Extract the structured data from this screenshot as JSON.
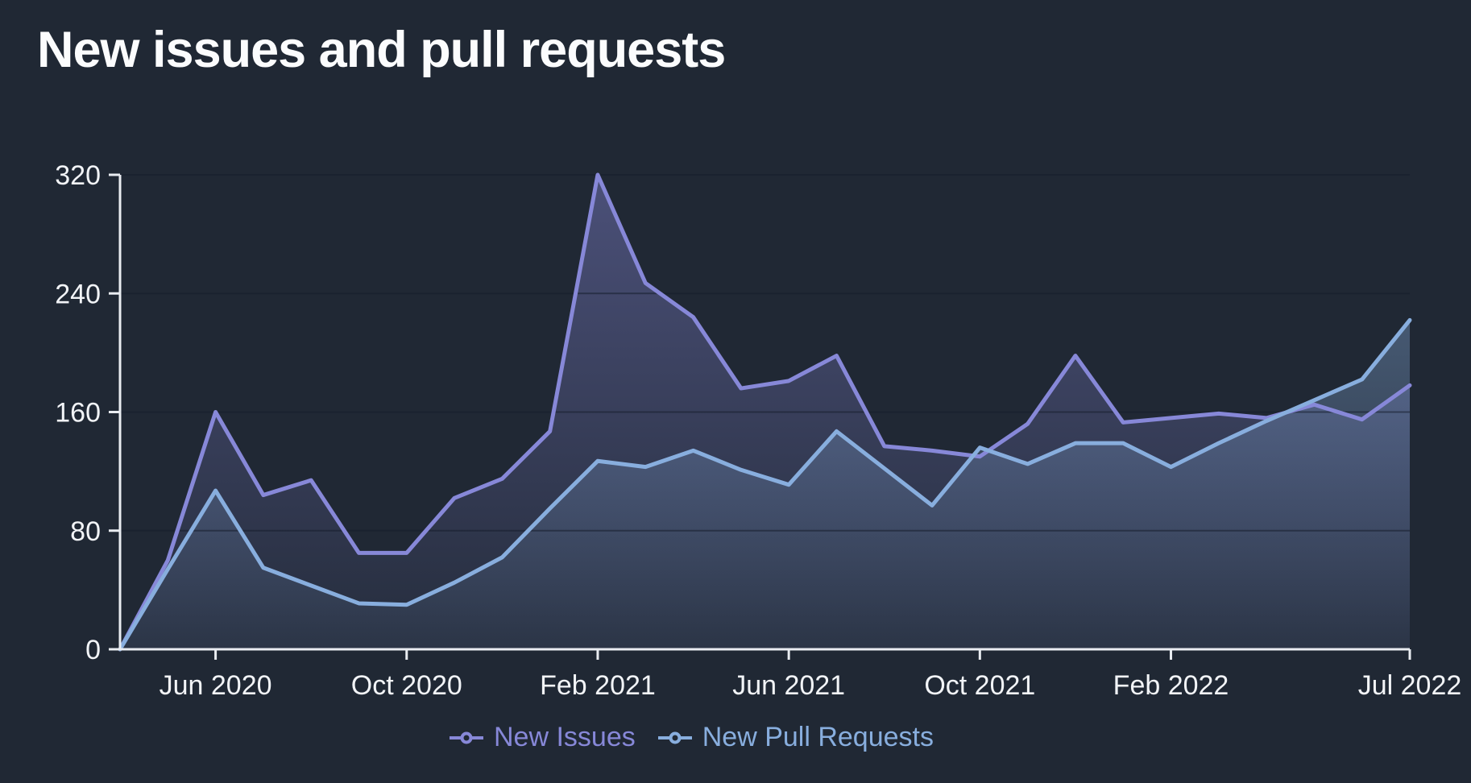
{
  "chart_data": {
    "type": "area",
    "title": "New issues and pull requests",
    "x": [
      "Apr 2020",
      "May 2020",
      "Jun 2020",
      "Jul 2020",
      "Aug 2020",
      "Sep 2020",
      "Oct 2020",
      "Nov 2020",
      "Dec 2020",
      "Jan 2021",
      "Feb 2021",
      "Mar 2021",
      "Apr 2021",
      "May 2021",
      "Jun 2021",
      "Jul 2021",
      "Aug 2021",
      "Sep 2021",
      "Oct 2021",
      "Nov 2021",
      "Dec 2021",
      "Jan 2022",
      "Feb 2022",
      "Mar 2022",
      "Apr 2022",
      "May 2022",
      "Jun 2022",
      "Jul 2022"
    ],
    "series": [
      {
        "name": "New Issues",
        "color": "#8788d8",
        "values": [
          0,
          60,
          160,
          104,
          114,
          65,
          65,
          102,
          115,
          147,
          320,
          247,
          224,
          176,
          181,
          198,
          137,
          134,
          130,
          152,
          198,
          153,
          156,
          159,
          156,
          165,
          155,
          178
        ]
      },
      {
        "name": "New Pull Requests",
        "color": "#88aede",
        "values": [
          0,
          54,
          107,
          55,
          43,
          31,
          30,
          45,
          62,
          95,
          127,
          123,
          134,
          121,
          111,
          147,
          122,
          97,
          136,
          125,
          139,
          139,
          123,
          139,
          154,
          168,
          182,
          222
        ]
      }
    ],
    "ylim": [
      0,
      320
    ],
    "y_ticks": [
      0,
      80,
      160,
      240,
      320
    ],
    "x_tick_indices": [
      2,
      6,
      10,
      14,
      18,
      22,
      27
    ],
    "x_tick_labels": [
      "Jun 2020",
      "Oct 2020",
      "Feb 2021",
      "Jun 2021",
      "Oct 2021",
      "Feb 2022",
      "Jul 2022"
    ],
    "grid": "horizontal",
    "legend_position": "bottom",
    "background_color": "#202834",
    "gridline_color": "#161e2b",
    "axis_color": "#e9ecf1",
    "text_color": "#f2f4f7"
  }
}
